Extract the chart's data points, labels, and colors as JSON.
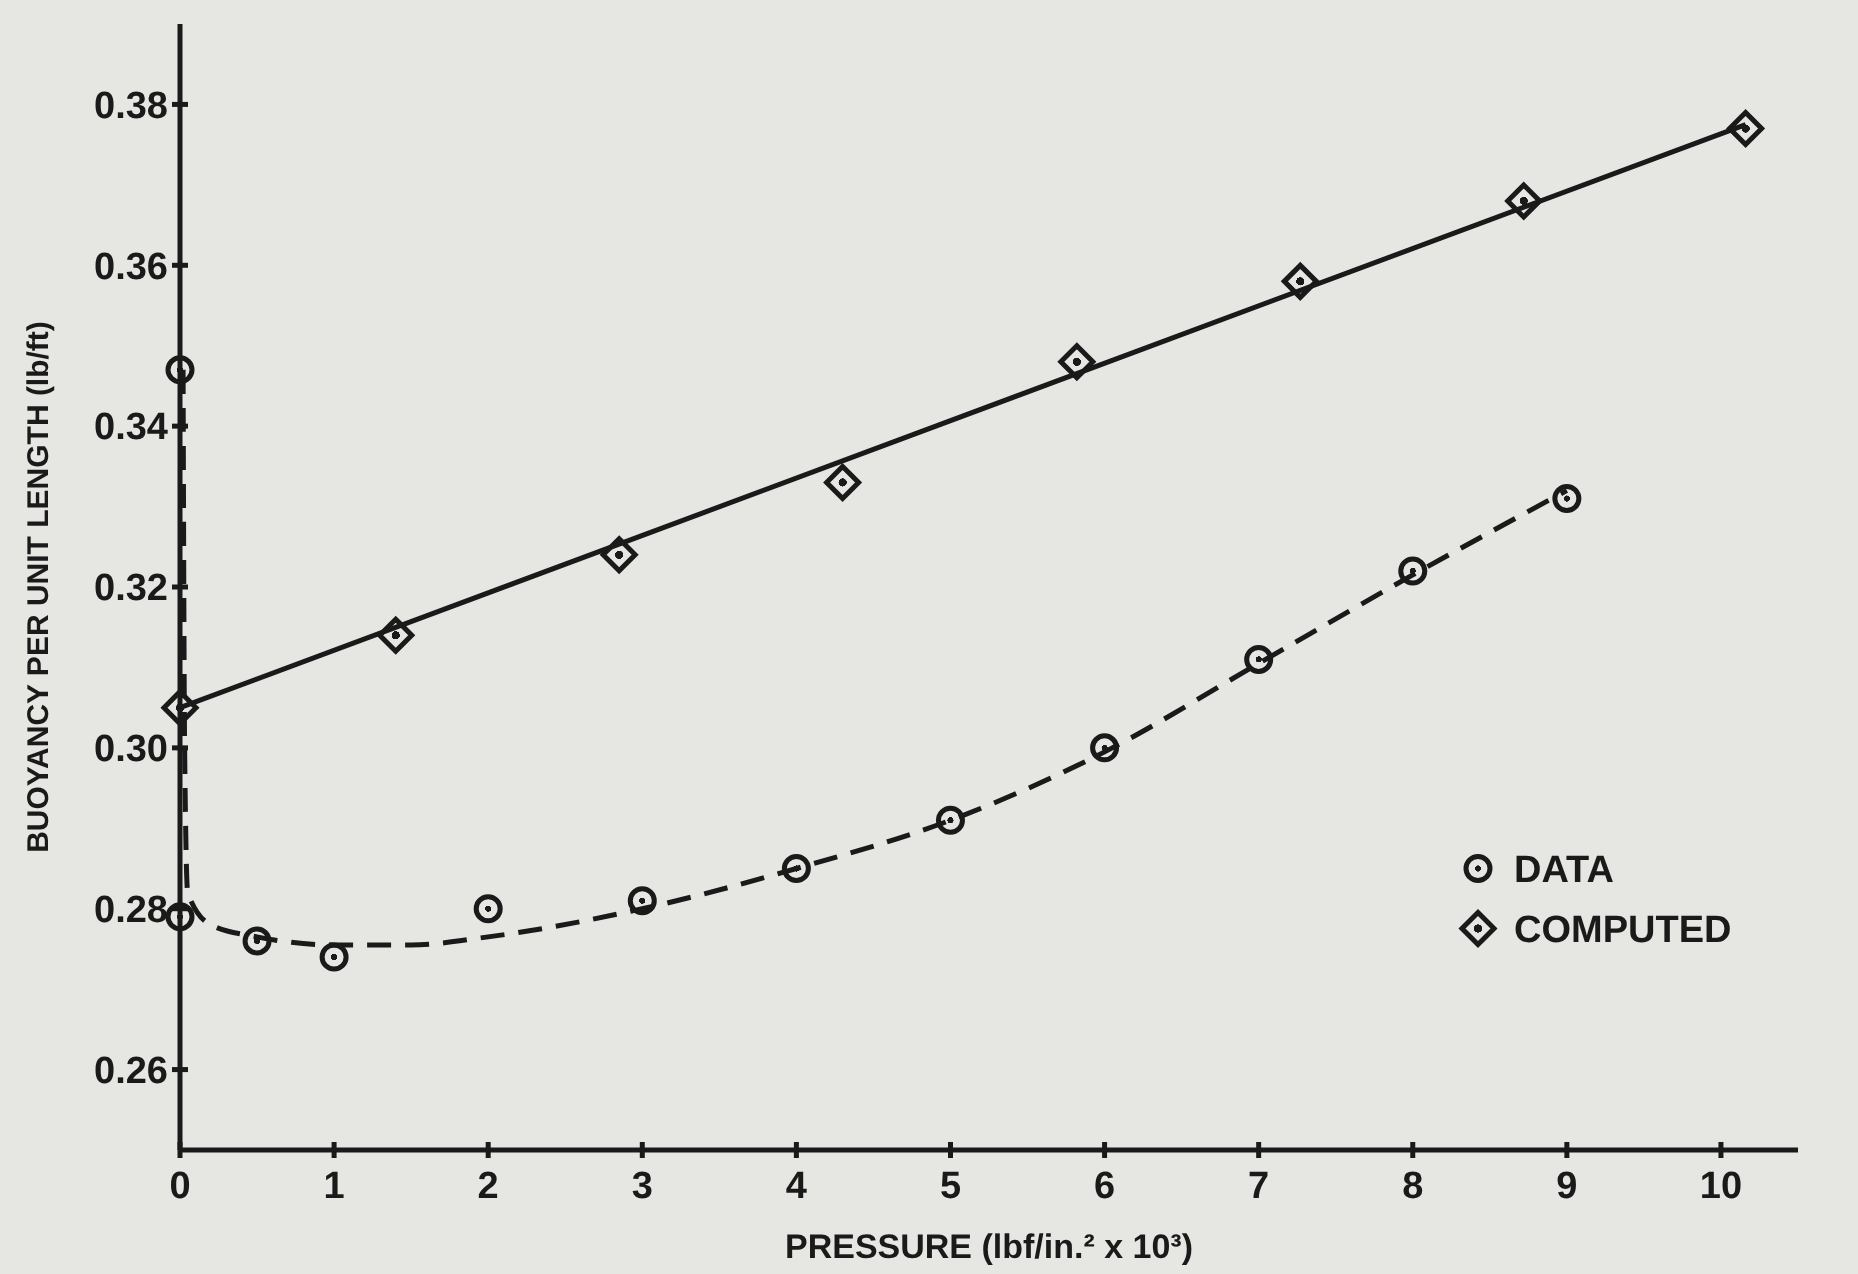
{
  "chart_data": {
    "type": "scatter",
    "xlabel": "PRESSURE (lbf/in.² x 10³)",
    "ylabel": "BUOYANCY PER UNIT LENGTH (lb/ft)",
    "xlim": [
      0,
      10.5
    ],
    "xticks": [
      0,
      1,
      2,
      3,
      4,
      5,
      6,
      7,
      8,
      9,
      10
    ],
    "ylim": [
      0.25,
      0.39
    ],
    "yticks": [
      0.26,
      0.28,
      {
        "value": 0.3,
        "label": "0.30"
      },
      0.32,
      0.34,
      0.36,
      0.38
    ],
    "grid": false,
    "legend": "right",
    "series": [
      {
        "name": "DATA",
        "type": "scatter",
        "marker": "circle",
        "color": "#1a1a1a",
        "x": [
          0,
          0,
          0.5,
          1,
          2,
          3,
          4,
          5,
          6,
          7,
          8,
          9
        ],
        "values": [
          0.347,
          0.279,
          0.276,
          0.274,
          0.28,
          0.281,
          0.285,
          0.291,
          0.3,
          0.311,
          0.322,
          0.331
        ]
      },
      {
        "name": "COMPUTED",
        "marker": "diamond",
        "color": "#1a1a1a",
        "x": [
          0,
          1.4,
          2.85,
          4.3,
          5.82,
          7.27,
          8.72,
          10.16
        ],
        "values": [
          0.305,
          0.314,
          0.324,
          0.333,
          0.348,
          0.358,
          0.368,
          0.377
        ]
      },
      {
        "type": "line",
        "line_style": "dashed",
        "marker": "none",
        "color": "#1a1a1a",
        "x": [
          0.02,
          0.03,
          0.05,
          0.2,
          0.5,
          1,
          1.5,
          2,
          3,
          4,
          5,
          6,
          7,
          8,
          9
        ],
        "values": [
          0.347,
          0.3,
          0.282,
          0.278,
          0.2765,
          0.2755,
          0.2755,
          0.2765,
          0.28,
          0.285,
          0.291,
          0.2995,
          0.3105,
          0.3215,
          0.332
        ]
      },
      {
        "type": "line",
        "line_style": "solid",
        "marker": "none",
        "color": "#1a1a1a",
        "x": [
          0,
          10.16
        ],
        "values": [
          0.305,
          0.3775
        ]
      }
    ]
  }
}
